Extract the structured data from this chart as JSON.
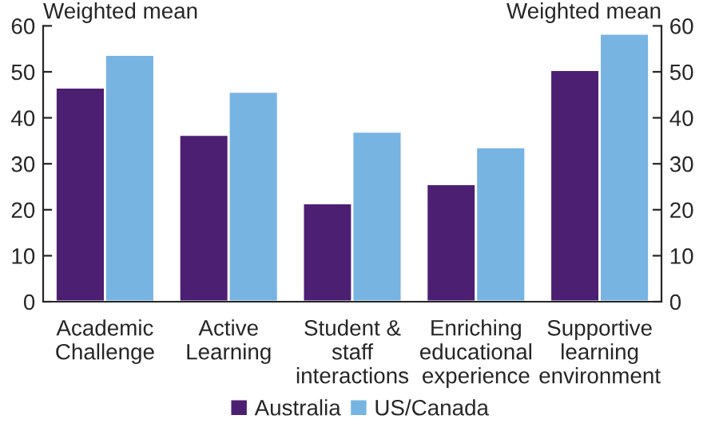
{
  "chart_data": {
    "type": "bar",
    "ylabel": "Weighted mean",
    "y2label": "Weighted mean",
    "categories": [
      "Academic\nChallenge",
      "Active\nLearning",
      "Student &\nstaff\ninteractions",
      "Enriching\neducational\nexperience",
      "Supportive\nlearning\nenvironment"
    ],
    "series": [
      {
        "name": "Australia",
        "color": "#4d1f73",
        "values": [
          46.6,
          36.3,
          21.4,
          25.6,
          50.4
        ]
      },
      {
        "name": "US/Canada",
        "color": "#78b4e2",
        "values": [
          53.7,
          45.7,
          37.0,
          33.6,
          58.3
        ]
      }
    ],
    "ylim": [
      0,
      60
    ],
    "yticks": [
      0,
      10,
      20,
      30,
      40,
      50,
      60
    ],
    "y2lim": [
      0,
      60
    ],
    "y2ticks": [
      0,
      10,
      20,
      30,
      40,
      50,
      60
    ],
    "grid": false,
    "legend": "bottom"
  }
}
